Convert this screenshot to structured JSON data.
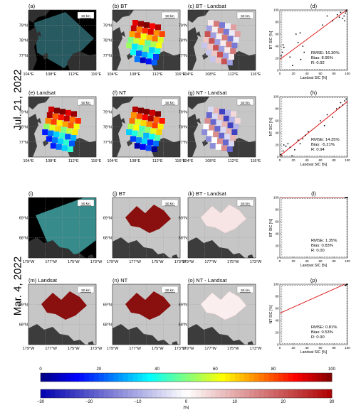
{
  "row_labels": {
    "top": "Jul. 21, 2022",
    "bottom": "Mar. 4, 2022"
  },
  "scale_bar": "50 km",
  "map_panels": [
    {
      "label": "(a)",
      "title": "",
      "kind": "img_top",
      "lat": [
        "79°N",
        "78°N",
        "77°N"
      ],
      "lon": [
        "104°E",
        "108°E",
        "112°E",
        "116°E"
      ]
    },
    {
      "label": "(b)",
      "title": "BT",
      "kind": "sic_top",
      "lat": [
        "79°N",
        "78°N",
        "77°N"
      ],
      "lon": [
        "104°E",
        "108°E",
        "112°E",
        "116°E"
      ]
    },
    {
      "label": "(c)",
      "title": "BT - Landsat",
      "kind": "diff_top",
      "lat": [
        "79°N",
        "78°N",
        "77°N"
      ],
      "lon": [
        "104°E",
        "108°E",
        "112°E",
        "116°E"
      ]
    },
    {
      "label": "(e)",
      "title": "Landsat",
      "kind": "sic_top2",
      "lat": [
        "79°N",
        "78°N",
        "77°N"
      ],
      "lon": [
        "104°E",
        "108°E",
        "112°E",
        "116°E"
      ]
    },
    {
      "label": "(f)",
      "title": "NT",
      "kind": "sic_top3",
      "lat": [
        "79°N",
        "78°N",
        "77°N"
      ],
      "lon": [
        "104°E",
        "108°E",
        "112°E",
        "116°E"
      ]
    },
    {
      "label": "(g)",
      "title": "NT - Landsat",
      "kind": "diff_top2",
      "lat": [
        "79°N",
        "78°N",
        "77°N"
      ],
      "lon": [
        "104°E",
        "108°E",
        "112°E",
        "116°E"
      ]
    },
    {
      "label": "(i)",
      "title": "",
      "kind": "img_bot",
      "lat": [
        "69°N",
        "68°N"
      ],
      "lon": [
        "179°W",
        "177°W",
        "175°W",
        "173°W"
      ]
    },
    {
      "label": "(j)",
      "title": "BT",
      "kind": "sic_bot",
      "lat": [
        "69°N",
        "68°N"
      ],
      "lon": [
        "179°W",
        "177°W",
        "175°W",
        "173°W"
      ]
    },
    {
      "label": "(k)",
      "title": "BT - Landsat",
      "kind": "diff_bot",
      "lat": [
        "69°N",
        "68°N"
      ],
      "lon": [
        "179°W",
        "177°W",
        "175°W",
        "173°W"
      ]
    },
    {
      "label": "(m)",
      "title": "Landsat",
      "kind": "sic_bot",
      "lat": [
        "69°N",
        "68°N"
      ],
      "lon": [
        "179°W",
        "177°W",
        "175°W",
        "173°W"
      ]
    },
    {
      "label": "(n)",
      "title": "NT",
      "kind": "sic_bot",
      "lat": [
        "69°N",
        "68°N"
      ],
      "lon": [
        "179°W",
        "177°W",
        "175°W",
        "173°W"
      ]
    },
    {
      "label": "(o)",
      "title": "NT - Landsat",
      "kind": "diff_bot2",
      "lat": [
        "69°N",
        "68°N"
      ],
      "lon": [
        "179°W",
        "177°W",
        "175°W",
        "173°W"
      ]
    }
  ],
  "chart_data": [
    {
      "label": "(d)",
      "type": "scatter",
      "xlabel": "Landsat SIC [%]",
      "ylabel": "BT SIC [%]",
      "xlim": [
        0,
        100
      ],
      "ylim": [
        0,
        100
      ],
      "ticks": [
        0,
        20,
        40,
        60,
        80,
        100
      ],
      "stats": [
        "RMSE: 16.30%",
        "Bias: 8.95%",
        "R: 0.92"
      ],
      "fit": {
        "intercept": 18,
        "slope": 0.83
      },
      "points": [
        [
          2,
          24
        ],
        [
          4,
          30
        ],
        [
          6,
          38
        ],
        [
          5,
          42
        ],
        [
          15,
          22
        ],
        [
          19,
          8
        ],
        [
          24,
          60
        ],
        [
          27,
          46
        ],
        [
          30,
          62
        ],
        [
          34,
          40
        ],
        [
          36,
          30
        ],
        [
          31,
          18
        ],
        [
          63,
          75
        ],
        [
          70,
          90
        ],
        [
          78,
          82
        ],
        [
          85,
          92
        ],
        [
          88,
          88
        ],
        [
          90,
          96
        ],
        [
          93,
          86
        ],
        [
          95,
          90
        ],
        [
          96,
          82
        ],
        [
          97,
          95
        ],
        [
          98,
          98
        ],
        [
          99,
          100
        ]
      ]
    },
    {
      "label": "(h)",
      "type": "scatter",
      "xlabel": "Landsat SIC [%]",
      "ylabel": "NT SIC [%]",
      "xlim": [
        0,
        100
      ],
      "ylim": [
        0,
        100
      ],
      "ticks": [
        0,
        20,
        40,
        60,
        80,
        100
      ],
      "stats": [
        "RMSE: 14.35%",
        "Bias: -5.21%",
        "R: 0.94"
      ],
      "fit": {
        "intercept": 2,
        "slope": 0.9
      },
      "points": [
        [
          1,
          4
        ],
        [
          3,
          2
        ],
        [
          5,
          10
        ],
        [
          6,
          20
        ],
        [
          9,
          18
        ],
        [
          12,
          22
        ],
        [
          15,
          16
        ],
        [
          18,
          2
        ],
        [
          22,
          12
        ],
        [
          27,
          28
        ],
        [
          30,
          22
        ],
        [
          34,
          30
        ],
        [
          38,
          36
        ],
        [
          42,
          42
        ],
        [
          60,
          60
        ],
        [
          66,
          52
        ],
        [
          70,
          70
        ],
        [
          78,
          66
        ],
        [
          84,
          80
        ],
        [
          88,
          82
        ],
        [
          90,
          90
        ],
        [
          93,
          86
        ],
        [
          96,
          93
        ],
        [
          98,
          96
        ]
      ]
    },
    {
      "label": "(l)",
      "type": "scatter",
      "xlabel": "Landsat SIC [%]",
      "ylabel": "BT SIC [%]",
      "xlim": [
        0,
        100
      ],
      "ylim": [
        0,
        100
      ],
      "ticks": [
        0,
        20,
        40,
        60,
        80,
        100
      ],
      "stats": [
        "RMSE: 1.35%",
        "Bias: 0.83%",
        "R: 0.00"
      ],
      "fit": {
        "intercept": 100,
        "slope": 0
      },
      "points": [
        [
          97,
          100
        ],
        [
          98,
          100
        ],
        [
          99,
          100
        ],
        [
          100,
          100
        ]
      ]
    },
    {
      "label": "(p)",
      "type": "scatter",
      "xlabel": "Landsat SIC [%]",
      "ylabel": "NT SIC [%]",
      "xlim": [
        0,
        100
      ],
      "ylim": [
        0,
        100
      ],
      "ticks": [
        0,
        20,
        40,
        60,
        80,
        100
      ],
      "stats": [
        "RMSE: 0.81%",
        "Bias: 0.53%",
        "R: 0.90"
      ],
      "fit": {
        "intercept": 52,
        "slope": 0.5
      },
      "points": [
        [
          97,
          98
        ],
        [
          98,
          99
        ],
        [
          99,
          100
        ],
        [
          100,
          100
        ]
      ]
    },
    {
      "type": "colorbar",
      "ticks": [
        0,
        20,
        40,
        60,
        80,
        100
      ],
      "range": [
        0,
        100
      ]
    },
    {
      "type": "colorbar",
      "ticks": [
        -30,
        -20,
        -10,
        0,
        10,
        20,
        30
      ],
      "range": [
        -30,
        30
      ],
      "unit": "[%]"
    }
  ]
}
